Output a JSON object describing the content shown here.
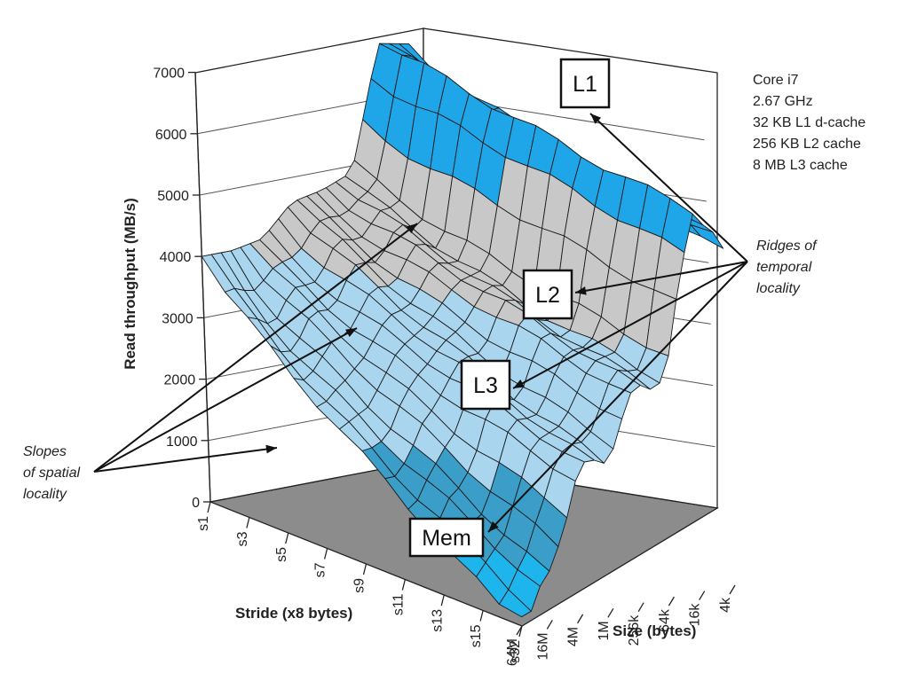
{
  "chart_data": {
    "type": "surface3d",
    "ylabel": "Read throughput (MB/s)",
    "xlabel": "Stride (x8 bytes)",
    "zlabel": "Size (bytes)",
    "zlim": [
      0,
      7000
    ],
    "z_ticks": [
      "0",
      "1000",
      "2000",
      "3000",
      "4000",
      "5000",
      "6000",
      "7000"
    ],
    "stride_ticks": [
      "s1",
      "s3",
      "s5",
      "s7",
      "s9",
      "s11",
      "s13",
      "s15",
      "s32"
    ],
    "size_ticks": [
      "64M",
      "16M",
      "4M",
      "1M",
      "256k",
      "64k",
      "16k",
      "4k"
    ],
    "machine_info": [
      "Core i7",
      "2.67 GHz",
      "32 KB L1 d-cache",
      "256 KB L2 cache",
      "8 MB L3 cache"
    ],
    "callouts": [
      "L1",
      "L2",
      "L3",
      "Mem"
    ],
    "annotations": {
      "temporal": [
        "Ridges of",
        "temporal",
        "locality"
      ],
      "spatial": [
        "Slopes",
        "of spatial",
        "locality"
      ]
    },
    "approx_throughput_by_size": [
      {
        "size": "64M",
        "stride_s1": 4000,
        "stride_s32": 500
      },
      {
        "size": "16M",
        "stride_s1": 4000,
        "stride_s32": 900
      },
      {
        "size": "4M",
        "stride_s1": 4100,
        "stride_s32": 2300
      },
      {
        "size": "1M",
        "stride_s1": 4600,
        "stride_s32": 2500
      },
      {
        "size": "256k",
        "stride_s1": 4700,
        "stride_s32": 3500
      },
      {
        "size": "64k",
        "stride_s1": 4900,
        "stride_s32": 3600
      },
      {
        "size": "16k",
        "stride_s1": 6900,
        "stride_s32": 6300
      },
      {
        "size": "4k",
        "stride_s1": 6800,
        "stride_s32": 5400
      }
    ],
    "colors": {
      "floor": "#8c8c8c",
      "band_mem": "#1eb4ec",
      "band_l3": "#3a9ec8",
      "band_l2": "#a9d6ee",
      "band_ridge": "#c8c8c8",
      "band_l1": "#1fa6e8",
      "mesh": "#1a1a1a"
    }
  }
}
